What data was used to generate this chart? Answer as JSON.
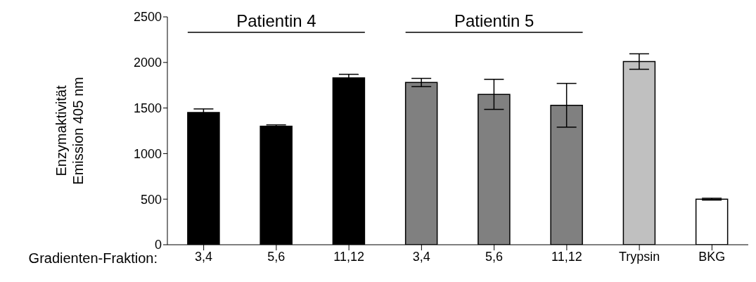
{
  "chart_data": {
    "type": "bar",
    "ylabel": "Enzymaktivität\nEmission 405 nm",
    "xlabel": "Gradienten-Fraktion:",
    "categories": [
      "3,4",
      "5,6",
      "11,12",
      "3,4",
      "5,6",
      "11,12",
      "Trypsin",
      "BKG"
    ],
    "values": [
      1450,
      1300,
      1830,
      1780,
      1650,
      1530,
      2010,
      500
    ],
    "errors": [
      40,
      15,
      40,
      45,
      165,
      240,
      85,
      10
    ],
    "colors": [
      "#000000",
      "#000000",
      "#000000",
      "#808080",
      "#808080",
      "#808080",
      "#c0c0c0",
      "#ffffff"
    ],
    "ylim": [
      0,
      2500
    ],
    "yticks": [
      0,
      500,
      1000,
      1500,
      2000,
      2500
    ],
    "annotations": [
      "Patientin 4",
      "Patientin 5"
    ]
  }
}
